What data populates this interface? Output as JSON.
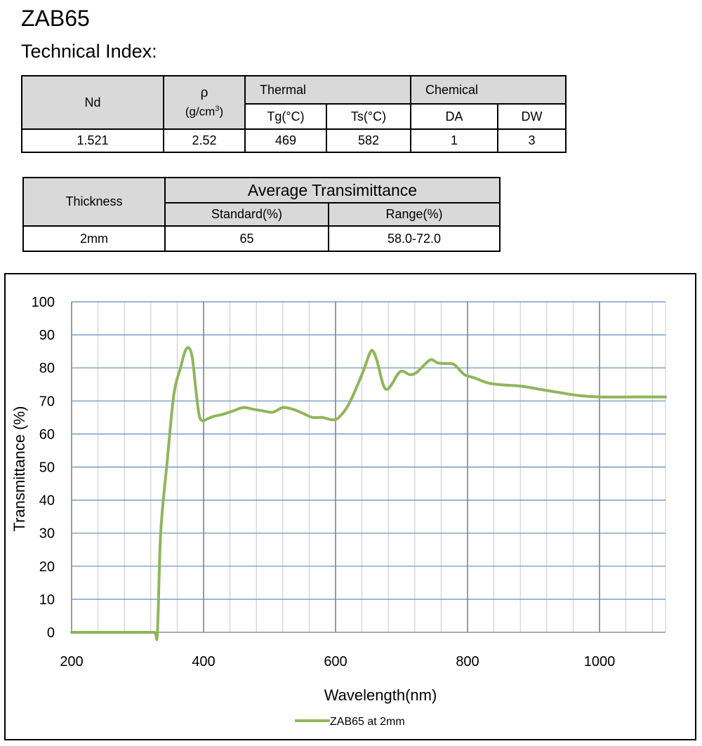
{
  "header": {
    "title": "ZAB65",
    "subtitle": "Technical Index:"
  },
  "tech_table": {
    "nd_label": "Nd",
    "rho_label": "ρ",
    "rho_unit_base": "(g/cm",
    "rho_unit_exp": "3",
    "rho_unit_close": ")",
    "thermal_label": "Thermal",
    "chemical_label": "Chemical",
    "tg_label": "Tg(°C)",
    "ts_label": "Ts(°C)",
    "da_label": "DA",
    "dw_label": "DW",
    "values": {
      "nd": "1.521",
      "rho": "2.52",
      "tg": "469",
      "ts": "582",
      "da": "1",
      "dw": "3"
    }
  },
  "trans_table": {
    "thickness_label": "Thickness",
    "avg_label": "Average Transimittance",
    "standard_label": "Standard(%)",
    "range_label": "Range(%)",
    "values": {
      "thickness": "2mm",
      "standard": "65",
      "range": "58.0-72.0"
    }
  },
  "chart_data": {
    "type": "line",
    "xlabel": "Wavelength(nm)",
    "ylabel": "Transmittance (%)",
    "xlim": [
      200,
      1100
    ],
    "ylim": [
      0,
      100
    ],
    "x_ticks": [
      200,
      400,
      600,
      800,
      1000
    ],
    "y_ticks": [
      0,
      10,
      20,
      30,
      40,
      50,
      60,
      70,
      80,
      90,
      100
    ],
    "x_minor_step": 40,
    "grid": true,
    "legend_position": "bottom-center",
    "series": [
      {
        "name": "ZAB65 at 2mm",
        "color": "#8fb65a",
        "points": [
          [
            200,
            0
          ],
          [
            300,
            0
          ],
          [
            325,
            0
          ],
          [
            330,
            0
          ],
          [
            335,
            30
          ],
          [
            345,
            52
          ],
          [
            355,
            72
          ],
          [
            365,
            80
          ],
          [
            372,
            85
          ],
          [
            378,
            86
          ],
          [
            383,
            83
          ],
          [
            388,
            74
          ],
          [
            393,
            66
          ],
          [
            398,
            64
          ],
          [
            405,
            64.5
          ],
          [
            415,
            65.3
          ],
          [
            430,
            66
          ],
          [
            445,
            67
          ],
          [
            460,
            68
          ],
          [
            475,
            67.5
          ],
          [
            490,
            67
          ],
          [
            505,
            66.6
          ],
          [
            520,
            68
          ],
          [
            535,
            67.5
          ],
          [
            550,
            66.3
          ],
          [
            565,
            65
          ],
          [
            580,
            65
          ],
          [
            595,
            64.3
          ],
          [
            605,
            65
          ],
          [
            620,
            69
          ],
          [
            640,
            78
          ],
          [
            652,
            84.5
          ],
          [
            657,
            85
          ],
          [
            663,
            82
          ],
          [
            672,
            75
          ],
          [
            678,
            73.5
          ],
          [
            685,
            75
          ],
          [
            695,
            78.3
          ],
          [
            702,
            79
          ],
          [
            712,
            78
          ],
          [
            722,
            78.5
          ],
          [
            735,
            81
          ],
          [
            745,
            82.5
          ],
          [
            755,
            81.5
          ],
          [
            770,
            81.3
          ],
          [
            780,
            81
          ],
          [
            795,
            78
          ],
          [
            810,
            77
          ],
          [
            830,
            75.5
          ],
          [
            850,
            74.9
          ],
          [
            880,
            74.5
          ],
          [
            910,
            73.5
          ],
          [
            940,
            72.5
          ],
          [
            970,
            71.6
          ],
          [
            1000,
            71.2
          ],
          [
            1050,
            71.2
          ],
          [
            1100,
            71.2
          ]
        ]
      }
    ]
  }
}
